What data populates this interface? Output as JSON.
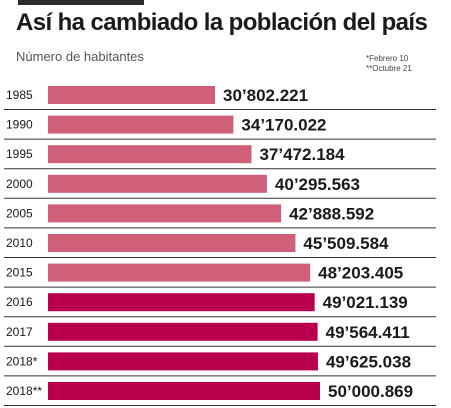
{
  "title": "Así ha cambiado la población del país",
  "subtitle": "Número de habitantes",
  "notes": [
    "*Febrero 10",
    "**Octubre 21"
  ],
  "colors": {
    "bar_past": "#d0607a",
    "bar_recent": "#b8004f",
    "row_line": "#333333",
    "text": "#1a1a1a"
  },
  "chart_data": {
    "type": "bar",
    "orientation": "horizontal",
    "categories": [
      "1985",
      "1990",
      "1995",
      "2000",
      "2005",
      "2010",
      "2015",
      "2016",
      "2017",
      "2018*",
      "2018**"
    ],
    "values": [
      30802221,
      34170022,
      37472184,
      40295563,
      42888592,
      45509584,
      48203405,
      49021139,
      49564411,
      49625038,
      50000869
    ],
    "value_labels": [
      "30’802.221",
      "34’170.022",
      "37’472.184",
      "40’295.563",
      "42’888.592",
      "45’509.584",
      "48’203.405",
      "49’021.139",
      "49’564.411",
      "49’625.038",
      "50’000.869"
    ],
    "highlight_from_index": 7,
    "title": "Así ha cambiado la población del país",
    "xlabel": "",
    "ylabel": "Número de habitantes"
  }
}
